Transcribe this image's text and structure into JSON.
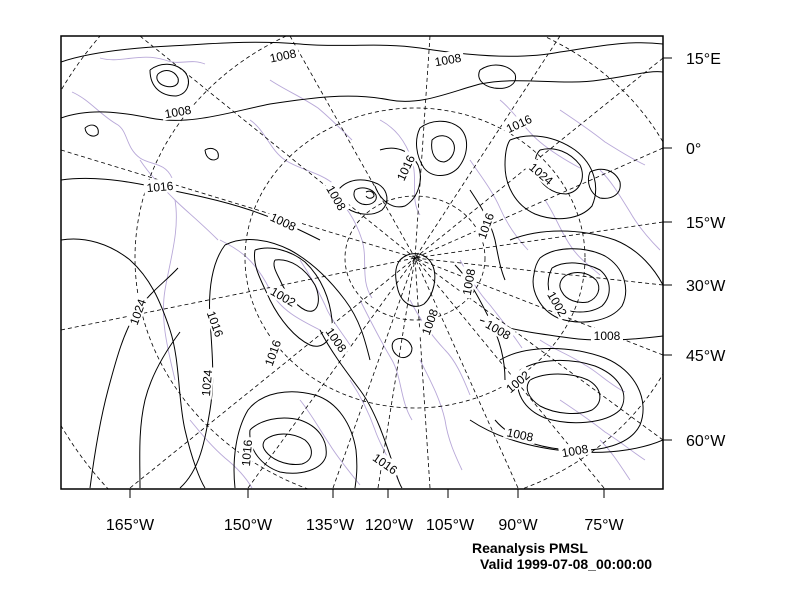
{
  "map": {
    "caption_title": "Reanalysis PMSL",
    "caption_valid": "Valid 1999-07-08_00:00:00",
    "bottom_axis_labels": [
      "165°W",
      "150°W",
      "135°W",
      "120°W",
      "105°W",
      "90°W",
      "75°W"
    ],
    "right_axis_labels": [
      "15°E",
      "0°",
      "15°W",
      "30°W",
      "45°W",
      "60°W"
    ],
    "contour_labels": [
      "1008",
      "1008",
      "1008",
      "1016",
      "1016",
      "1024",
      "1008",
      "1016",
      "1016",
      "1008",
      "1002",
      "1008",
      "1024",
      "1016",
      "1016",
      "1024",
      "1008",
      "1008",
      "1008",
      "1002",
      "1008",
      "1002",
      "1008",
      "1008",
      "1016",
      "1016"
    ],
    "colors": {
      "contour": "#000000",
      "coastline": "#b8a8d8",
      "grid": "#000000"
    }
  }
}
